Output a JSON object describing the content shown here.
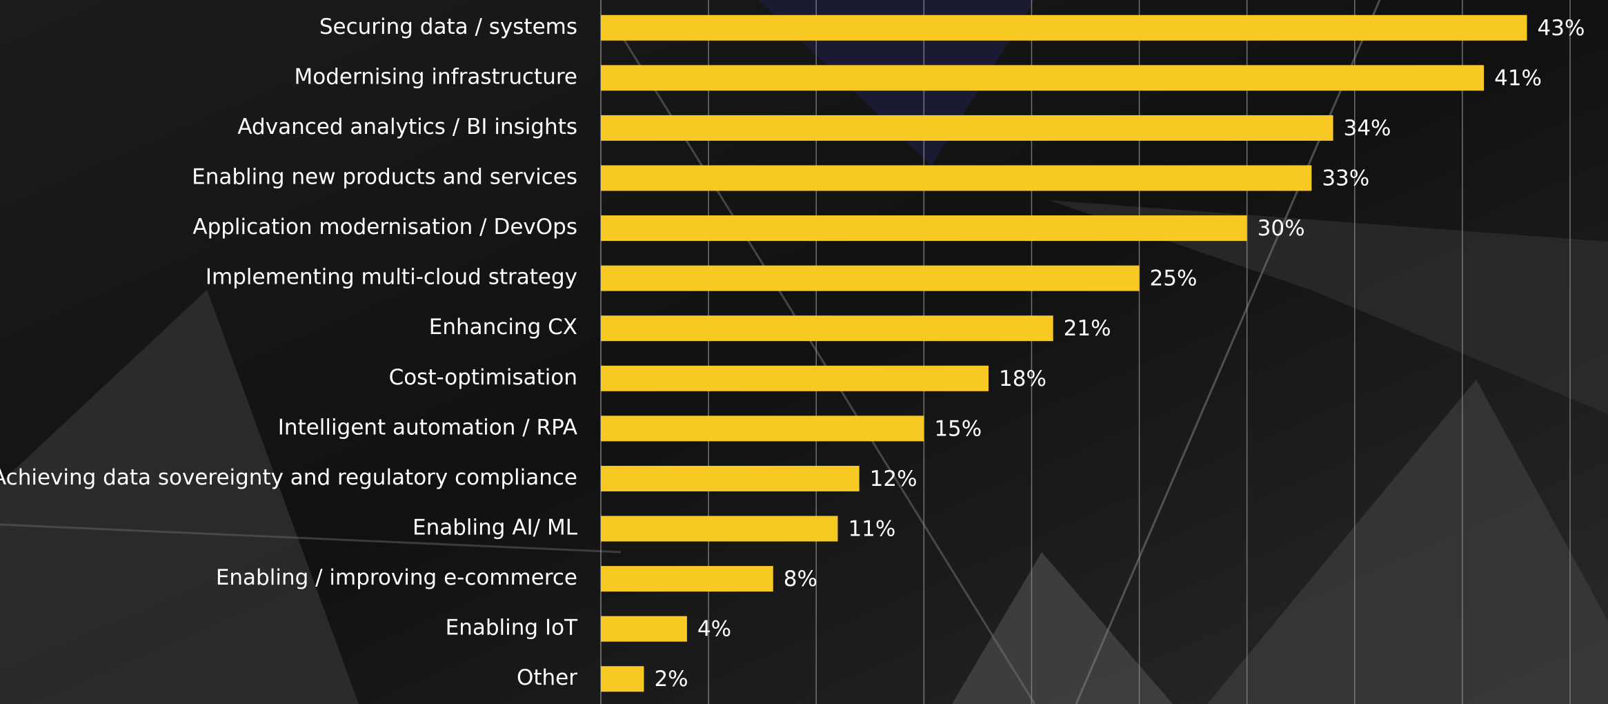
{
  "chart_data": {
    "type": "barh",
    "categories": [
      "Securing data / systems",
      "Modernising infrastructure",
      "Advanced analytics / BI insights",
      "Enabling new products and services",
      "Application modernisation / DevOps",
      "Implementing multi-cloud strategy",
      "Enhancing CX",
      "Cost-optimisation",
      "Intelligent automation / RPA",
      "Achieving data sovereignty and regulatory compliance",
      "Enabling AI/ ML",
      "Enabling / improving e-commerce",
      "Enabling IoT",
      "Other"
    ],
    "values": [
      43,
      41,
      34,
      33,
      30,
      25,
      21,
      18,
      15,
      12,
      11,
      8,
      4,
      2
    ],
    "value_labels": [
      "43%",
      "41%",
      "34%",
      "33%",
      "30%",
      "25%",
      "21%",
      "18%",
      "15%",
      "12%",
      "11%",
      "8%",
      "4%",
      "2%"
    ],
    "color": "#f9c923",
    "xlim": [
      0,
      45
    ],
    "xticks": [
      0,
      5,
      10,
      15,
      20,
      25,
      30,
      35,
      40,
      45
    ],
    "grid": true
  }
}
